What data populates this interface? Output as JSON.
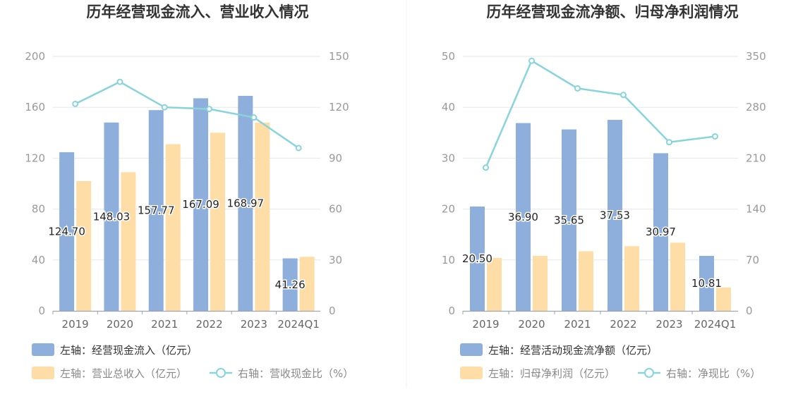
{
  "colors": {
    "bar1": "#8eaedc",
    "bar2": "#ffdda6",
    "line": "#88d4db",
    "grid": "#e3e7f0",
    "axis": "#9ea3ad"
  },
  "chart_data": [
    {
      "type": "bar",
      "title": "历年经营现金流入、营业收入情况",
      "categories": [
        "2019",
        "2020",
        "2021",
        "2022",
        "2023",
        "2024Q1"
      ],
      "series": [
        {
          "name": "左轴：经营现金流入（亿元）",
          "axis": "left",
          "kind": "bar",
          "values": [
            124.7,
            148.03,
            157.77,
            167.09,
            168.97,
            41.26
          ],
          "labels": [
            "124.70",
            "148.03",
            "157.77",
            "167.09",
            "168.97",
            "41.26"
          ]
        },
        {
          "name": "左轴：营业总收入（亿元）",
          "axis": "left",
          "kind": "bar",
          "values": [
            102,
            109,
            131,
            140,
            148,
            42.5
          ]
        },
        {
          "name": "右轴：营收现金比（%）",
          "axis": "right",
          "kind": "line",
          "values": [
            122,
            135,
            120,
            119,
            114,
            96
          ]
        }
      ],
      "y_left": {
        "min": 0,
        "max": 200,
        "ticks": [
          "0",
          "40",
          "80",
          "120",
          "160",
          "200"
        ]
      },
      "y_right": {
        "min": 0,
        "max": 150,
        "ticks": [
          "0",
          "30",
          "60",
          "90",
          "120",
          "150"
        ]
      }
    },
    {
      "type": "bar",
      "title": "历年经营现金流净额、归母净利润情况",
      "categories": [
        "2019",
        "2020",
        "2021",
        "2022",
        "2023",
        "2024Q1"
      ],
      "series": [
        {
          "name": "左轴：经营活动现金流净额（亿元）",
          "axis": "left",
          "kind": "bar",
          "values": [
            20.5,
            36.9,
            35.65,
            37.53,
            30.97,
            10.81
          ],
          "labels": [
            "20.50",
            "36.90",
            "35.65",
            "37.53",
            "30.97",
            "10.81"
          ]
        },
        {
          "name": "左轴：归母净利润（亿元）",
          "axis": "left",
          "kind": "bar",
          "values": [
            10.4,
            10.8,
            11.7,
            12.7,
            13.4,
            4.6
          ]
        },
        {
          "name": "右轴：净现比（%）",
          "axis": "right",
          "kind": "line",
          "values": [
            197,
            344,
            306,
            297,
            232,
            240
          ]
        }
      ],
      "y_left": {
        "min": 0,
        "max": 50,
        "ticks": [
          "0",
          "10",
          "20",
          "30",
          "40",
          "50"
        ]
      },
      "y_right": {
        "min": 0,
        "max": 350,
        "ticks": [
          "0",
          "70",
          "140",
          "210",
          "280",
          "350"
        ]
      }
    }
  ]
}
